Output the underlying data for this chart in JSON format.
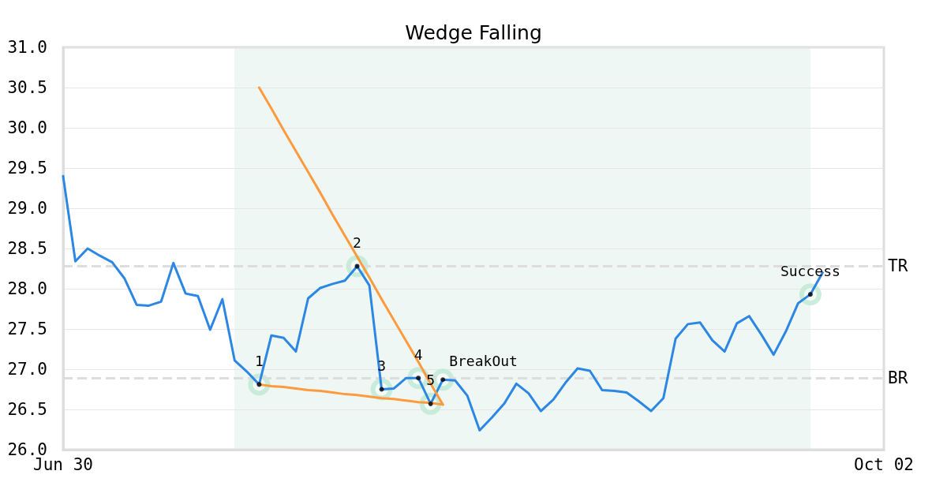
{
  "chart_data": {
    "type": "line",
    "title": "Wedge Falling",
    "categories": [
      "Jun 30",
      null,
      null,
      null,
      null,
      null,
      null,
      null,
      null,
      null,
      null,
      null,
      null,
      null,
      null,
      null,
      null,
      null,
      null,
      null,
      null,
      null,
      null,
      null,
      null,
      null,
      null,
      null,
      null,
      null,
      null,
      null,
      null,
      null,
      null,
      null,
      null,
      null,
      null,
      null,
      null,
      null,
      null,
      null,
      null,
      null,
      null,
      null,
      null,
      null,
      null,
      null,
      null,
      null,
      null,
      null,
      null,
      null,
      null,
      null,
      null,
      null,
      null,
      null,
      null,
      null,
      null,
      "Oct 02"
    ],
    "series": [
      {
        "color": "#2b87e3",
        "values": [
          29.4,
          28.34,
          28.5,
          28.41,
          28.33,
          28.13,
          27.8,
          27.79,
          27.84,
          28.32,
          27.94,
          27.91,
          27.49,
          27.87,
          27.11,
          26.97,
          26.81,
          27.42,
          27.39,
          27.22,
          27.88,
          28.01,
          28.06,
          28.1,
          28.28,
          28.04,
          26.75,
          26.76,
          26.89,
          26.89,
          26.57,
          26.87,
          26.86,
          26.67,
          26.24,
          26.4,
          26.57,
          26.82,
          26.7,
          26.48,
          26.62,
          26.83,
          27.01,
          26.98,
          26.74,
          26.73,
          26.71,
          26.6,
          26.48,
          26.64,
          27.38,
          27.56,
          27.58,
          27.36,
          27.22,
          27.57,
          27.66,
          27.43,
          27.18,
          27.47,
          27.82,
          27.93,
          28.2,
          null,
          null,
          null,
          null,
          null
        ]
      },
      {
        "type": "line",
        "color": "#fd9a3e",
        "values": [
          null,
          null,
          null,
          null,
          null,
          null,
          null,
          null,
          null,
          null,
          null,
          null,
          null,
          null,
          null,
          null,
          30.5,
          30.24,
          29.97,
          29.71,
          29.45,
          29.19,
          28.92,
          28.66,
          28.4,
          28.14,
          27.87,
          27.61,
          27.35,
          27.09,
          26.82,
          26.56,
          null,
          null,
          null,
          null,
          null,
          null,
          null,
          null,
          null,
          null,
          null,
          null,
          null,
          null,
          null,
          null,
          null,
          null,
          null,
          null,
          null,
          null,
          null,
          null,
          null,
          null,
          null,
          null,
          null,
          null,
          null,
          null,
          null,
          null,
          null,
          null
        ]
      },
      {
        "type": "line",
        "color": "#fd9a3e",
        "values": [
          null,
          null,
          null,
          null,
          null,
          null,
          null,
          null,
          null,
          null,
          null,
          null,
          null,
          null,
          null,
          null,
          26.81,
          26.79,
          26.78,
          26.76,
          26.74,
          26.73,
          26.71,
          26.69,
          26.68,
          26.66,
          26.64,
          26.63,
          26.61,
          26.59,
          26.58,
          26.56,
          null,
          null,
          null,
          null,
          null,
          null,
          null,
          null,
          null,
          null,
          null,
          null,
          null,
          null,
          null,
          null,
          null,
          null,
          null,
          null,
          null,
          null,
          null,
          null,
          null,
          null,
          null,
          null,
          null,
          null,
          null,
          null,
          null,
          null,
          null,
          null
        ]
      }
    ],
    "ylim": [
      26,
      31
    ],
    "yticks": [
      {
        "value": 26,
        "label": "26.0"
      },
      {
        "value": 26.5,
        "label": "26.5"
      },
      {
        "value": 27,
        "label": "27.0"
      },
      {
        "value": 27.5,
        "label": "27.5"
      },
      {
        "value": 28,
        "label": "28.0"
      },
      {
        "value": 28.5,
        "label": "28.5"
      },
      {
        "value": 29,
        "label": "29.0"
      },
      {
        "value": 29.5,
        "label": "29.5"
      },
      {
        "value": 30,
        "label": "30.0"
      },
      {
        "value": 30.5,
        "label": "30.5"
      },
      {
        "value": 31,
        "label": "31.0"
      }
    ],
    "grid": "y",
    "marker": "none",
    "line_style": "solid",
    "ref_lines": [
      {
        "axis": "y",
        "value": 28.28,
        "label": "TR",
        "color": "#dddddd",
        "line_style": "dashed"
      },
      {
        "axis": "y",
        "value": 26.89,
        "label": "BR",
        "color": "#dddddd",
        "line_style": "dashed"
      }
    ],
    "annotations": [
      {
        "text": "1",
        "y": 26.81
      },
      {
        "text": "2",
        "y": 28.28
      },
      {
        "text": "3",
        "y": 26.75
      },
      {
        "text": "4",
        "y": 26.89
      },
      {
        "text": "5",
        "y": 26.57
      },
      {
        "text": "BreakOut",
        "y": 26.87
      },
      {
        "text": "Success",
        "y": 27.93
      }
    ]
  }
}
